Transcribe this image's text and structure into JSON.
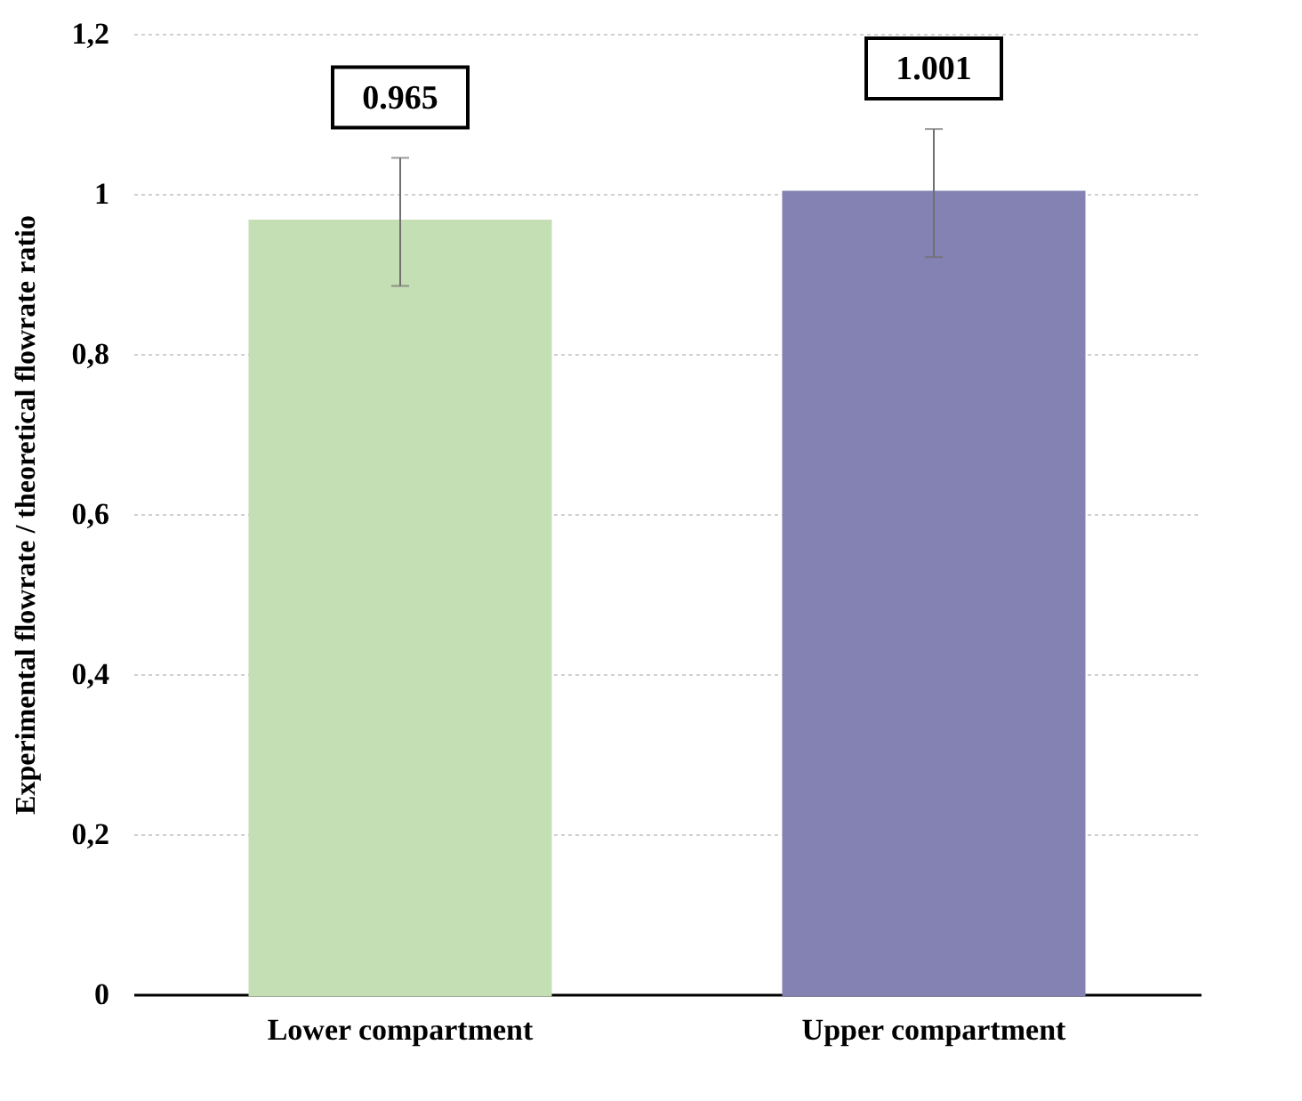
{
  "chart_data": {
    "type": "bar",
    "ylabel": "Experimental flowrate / theoretical flowrate ratio",
    "categories": [
      "Lower compartment",
      "Upper compartment"
    ],
    "values": [
      0.965,
      1.001
    ],
    "colors": [
      "#c5dfb4",
      "#8481b3"
    ],
    "errors": [
      0.08,
      0.08
    ],
    "data_labels": true,
    "ylim": [
      0,
      1.2
    ],
    "yticks": [
      0,
      {
        "value": 0.2,
        "label": "0,2"
      },
      {
        "value": 0.4,
        "label": "0,4"
      },
      {
        "value": 0.6,
        "label": "0,6"
      },
      {
        "value": 0.8,
        "label": "0,8"
      },
      1,
      {
        "value": 1.2,
        "label": "1,2"
      }
    ],
    "grid": "y"
  }
}
